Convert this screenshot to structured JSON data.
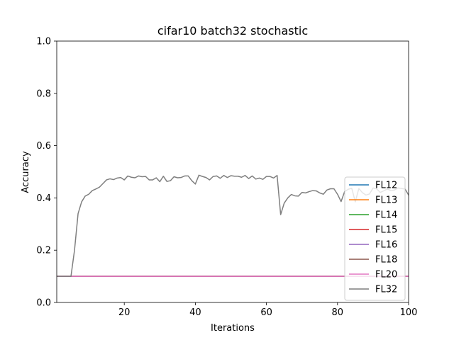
{
  "chart_data": {
    "type": "line",
    "title": "cifar10 batch32 stochastic",
    "xlabel": "Iterations",
    "ylabel": "Accuracy",
    "xlim": [
      1,
      100
    ],
    "ylim": [
      0.0,
      1.0
    ],
    "xticks": [
      20,
      40,
      60,
      80,
      100
    ],
    "yticks": [
      0.0,
      0.2,
      0.4,
      0.6,
      0.8,
      1.0
    ],
    "grid": false,
    "legend_position": "lower-right",
    "x": [
      1,
      2,
      3,
      4,
      5,
      6,
      7,
      8,
      9,
      10,
      11,
      12,
      13,
      14,
      15,
      16,
      17,
      18,
      19,
      20,
      21,
      22,
      23,
      24,
      25,
      26,
      27,
      28,
      29,
      30,
      31,
      32,
      33,
      34,
      35,
      36,
      37,
      38,
      39,
      40,
      41,
      42,
      43,
      44,
      45,
      46,
      47,
      48,
      49,
      50,
      51,
      52,
      53,
      54,
      55,
      56,
      57,
      58,
      59,
      60,
      61,
      62,
      63,
      64,
      65,
      66,
      67,
      68,
      69,
      70,
      71,
      72,
      73,
      74,
      75,
      76,
      77,
      78,
      79,
      80,
      81,
      82,
      83,
      84,
      85,
      86,
      87,
      88,
      89,
      90,
      91,
      92,
      93,
      94,
      95,
      96,
      97,
      98,
      99,
      100
    ],
    "series": [
      {
        "name": "FL12",
        "color": "#1f77b4",
        "constant": 0.1
      },
      {
        "name": "FL13",
        "color": "#ff7f0e",
        "constant": 0.1
      },
      {
        "name": "FL14",
        "color": "#2ca02c",
        "constant": 0.1
      },
      {
        "name": "FL15",
        "color": "#d62728",
        "constant": 0.1
      },
      {
        "name": "FL16",
        "color": "#9467bd",
        "constant": 0.1
      },
      {
        "name": "FL18",
        "color": "#8c564b",
        "constant": 0.1
      },
      {
        "name": "FL20",
        "color": "#e377c2",
        "constant": 0.1
      },
      {
        "name": "FL32",
        "color": "#7f7f7f",
        "values": [
          0.1,
          0.1,
          0.1,
          0.1,
          0.1,
          0.2,
          0.34,
          0.385,
          0.407,
          0.414,
          0.428,
          0.434,
          0.441,
          0.455,
          0.469,
          0.473,
          0.47,
          0.476,
          0.478,
          0.469,
          0.484,
          0.479,
          0.477,
          0.484,
          0.481,
          0.482,
          0.469,
          0.469,
          0.477,
          0.462,
          0.483,
          0.463,
          0.466,
          0.481,
          0.477,
          0.478,
          0.484,
          0.484,
          0.466,
          0.453,
          0.487,
          0.482,
          0.478,
          0.469,
          0.482,
          0.484,
          0.475,
          0.486,
          0.478,
          0.485,
          0.483,
          0.483,
          0.479,
          0.486,
          0.474,
          0.484,
          0.472,
          0.476,
          0.471,
          0.482,
          0.482,
          0.476,
          0.486,
          0.336,
          0.38,
          0.4,
          0.413,
          0.408,
          0.407,
          0.421,
          0.419,
          0.424,
          0.428,
          0.427,
          0.419,
          0.414,
          0.43,
          0.435,
          0.435,
          0.414,
          0.386,
          0.424,
          0.433,
          0.437,
          0.385,
          0.436,
          0.42,
          0.411,
          0.415,
          0.438,
          0.435,
          0.421,
          0.427,
          0.434,
          0.428,
          0.43,
          0.438,
          0.436,
          0.434,
          0.411
        ]
      }
    ]
  }
}
